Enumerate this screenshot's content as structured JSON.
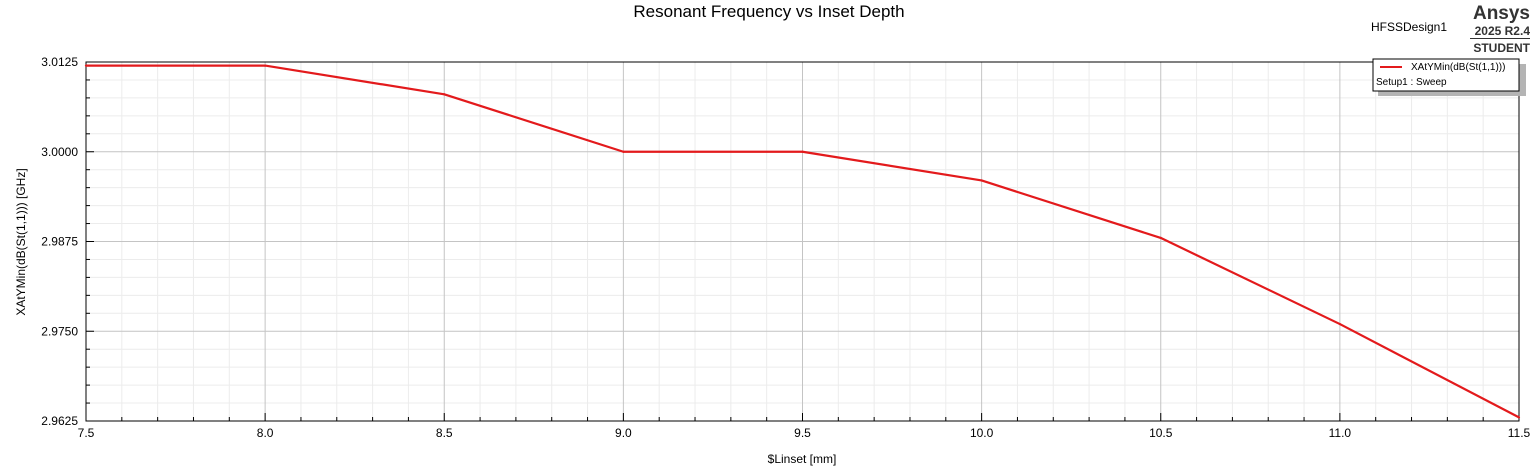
{
  "chart_data": {
    "type": "line",
    "title": "Resonant Frequency vs Inset Depth",
    "xlabel": "$Linset [mm]",
    "ylabel": "XAtYMin(dB(St(1,1))) [GHz]",
    "xlim": [
      7.5,
      11.5
    ],
    "ylim": [
      2.9625,
      3.0125
    ],
    "x_ticks": [
      "7.5",
      "8.0",
      "8.5",
      "9.0",
      "9.5",
      "10.0",
      "10.5",
      "11.0",
      "11.5"
    ],
    "y_ticks": [
      "3.0125",
      "3.0000",
      "2.9875",
      "2.9750",
      "2.9625"
    ],
    "grid": true,
    "legend_position": "top-right",
    "series": [
      {
        "name": "XAtYMin(dB(St(1,1)))",
        "sub_label": "Setup1 : Sweep",
        "color": "#e31a1c",
        "x": [
          7.5,
          8.0,
          8.5,
          9.0,
          9.5,
          10.0,
          10.5,
          11.0,
          11.5
        ],
        "y": [
          3.012,
          3.012,
          3.008,
          3.0,
          3.0,
          2.996,
          2.988,
          2.976,
          2.963
        ]
      }
    ]
  },
  "design_name": "HFSSDesign1",
  "brand": {
    "name": "Ansys",
    "version": "2025 R2.4",
    "edition": "STUDENT"
  }
}
